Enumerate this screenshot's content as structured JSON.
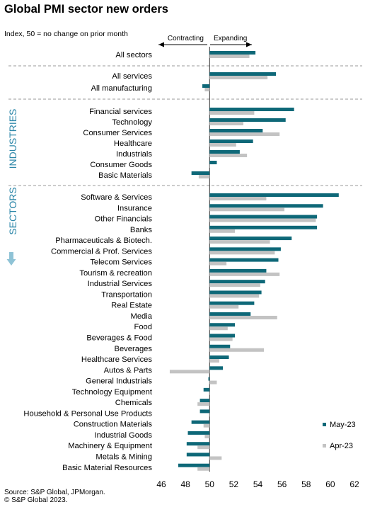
{
  "title": "Global PMI sector new orders",
  "subtitle": "Index, 50 = no change on prior month",
  "source": "Source: S&P Global, JPMorgan.",
  "copyright": "© S&P Global 2023.",
  "colors": {
    "may": "#0e6878",
    "apr": "#c3c3c3",
    "accent": "#2b86a8",
    "arrow_down": "#8fc3d6"
  },
  "chart_data": {
    "type": "bar",
    "orientation": "horizontal",
    "xlim": [
      46,
      62
    ],
    "xticks": [
      46,
      48,
      50,
      52,
      54,
      56,
      58,
      60,
      62
    ],
    "baseline": 50,
    "direction_labels": {
      "left": "Contracting",
      "right": "Expanding"
    },
    "group_labels": {
      "industries": "INDUSTRIES",
      "sectors": "SECTORS"
    },
    "legend_position": "bottom-right",
    "series": [
      {
        "name": "May-23",
        "color": "#0e6878"
      },
      {
        "name": "Apr-23",
        "color": "#c3c3c3"
      }
    ],
    "categories": [
      {
        "label": "All sectors",
        "may": 53.8,
        "apr": 53.3
      },
      {
        "label": "All services",
        "may": 55.5,
        "apr": 54.8
      },
      {
        "label": "All manufacturing",
        "may": 49.4,
        "apr": 49.6
      },
      {
        "label": "Financial services",
        "may": 57.0,
        "apr": 53.7
      },
      {
        "label": "Technology",
        "may": 56.3,
        "apr": 52.8
      },
      {
        "label": "Consumer Services",
        "may": 54.4,
        "apr": 55.8
      },
      {
        "label": "Healthcare",
        "may": 53.6,
        "apr": 52.2
      },
      {
        "label": "Industrials",
        "may": 52.5,
        "apr": 53.1
      },
      {
        "label": "Consumer Goods",
        "may": 50.6,
        "apr": 50.0
      },
      {
        "label": "Basic Materials",
        "may": 48.5,
        "apr": 49.1
      },
      {
        "label": "Software & Services",
        "may": 60.7,
        "apr": 54.7
      },
      {
        "label": "Insurance",
        "may": 59.4,
        "apr": 56.2
      },
      {
        "label": "Other Financials",
        "may": 58.9,
        "apr": 58.8
      },
      {
        "label": "Banks",
        "may": 58.9,
        "apr": 52.1
      },
      {
        "label": "Pharmaceuticals & Biotech.",
        "may": 56.8,
        "apr": 55.0
      },
      {
        "label": "Commercial & Prof. Services",
        "may": 55.9,
        "apr": 55.4
      },
      {
        "label": "Telecom Services",
        "may": 55.7,
        "apr": 51.4
      },
      {
        "label": "Tourism & recreation",
        "may": 54.7,
        "apr": 55.8
      },
      {
        "label": "Industrial Services",
        "may": 54.6,
        "apr": 54.2
      },
      {
        "label": "Transportation",
        "may": 54.3,
        "apr": 54.1
      },
      {
        "label": "Real Estate",
        "may": 53.7,
        "apr": 52.4
      },
      {
        "label": "Media",
        "may": 53.4,
        "apr": 55.6
      },
      {
        "label": "Food",
        "may": 52.1,
        "apr": 51.5
      },
      {
        "label": "Beverages & Food",
        "may": 52.1,
        "apr": 51.9
      },
      {
        "label": "Beverages",
        "may": 51.7,
        "apr": 54.5
      },
      {
        "label": "Healthcare Services",
        "may": 51.6,
        "apr": 50.8
      },
      {
        "label": "Autos & Parts",
        "may": 51.1,
        "apr": 46.7
      },
      {
        "label": "General Industrials",
        "may": 49.9,
        "apr": 50.6
      },
      {
        "label": "Technology Equipment",
        "may": 49.5,
        "apr": 50.0
      },
      {
        "label": "Chemicals",
        "may": 49.2,
        "apr": 49.0
      },
      {
        "label": "Household & Personal Use Products",
        "may": 49.2,
        "apr": 50.0
      },
      {
        "label": "Construction Materials",
        "may": 48.5,
        "apr": 49.5
      },
      {
        "label": "Industrial Goods",
        "may": 48.2,
        "apr": 49.6
      },
      {
        "label": "Machinery & Equipment",
        "may": 48.1,
        "apr": 49.0
      },
      {
        "label": "Metals & Mining",
        "may": 48.1,
        "apr": 51.0
      },
      {
        "label": "Basic Material Resources",
        "may": 47.4,
        "apr": 49.0
      }
    ]
  }
}
